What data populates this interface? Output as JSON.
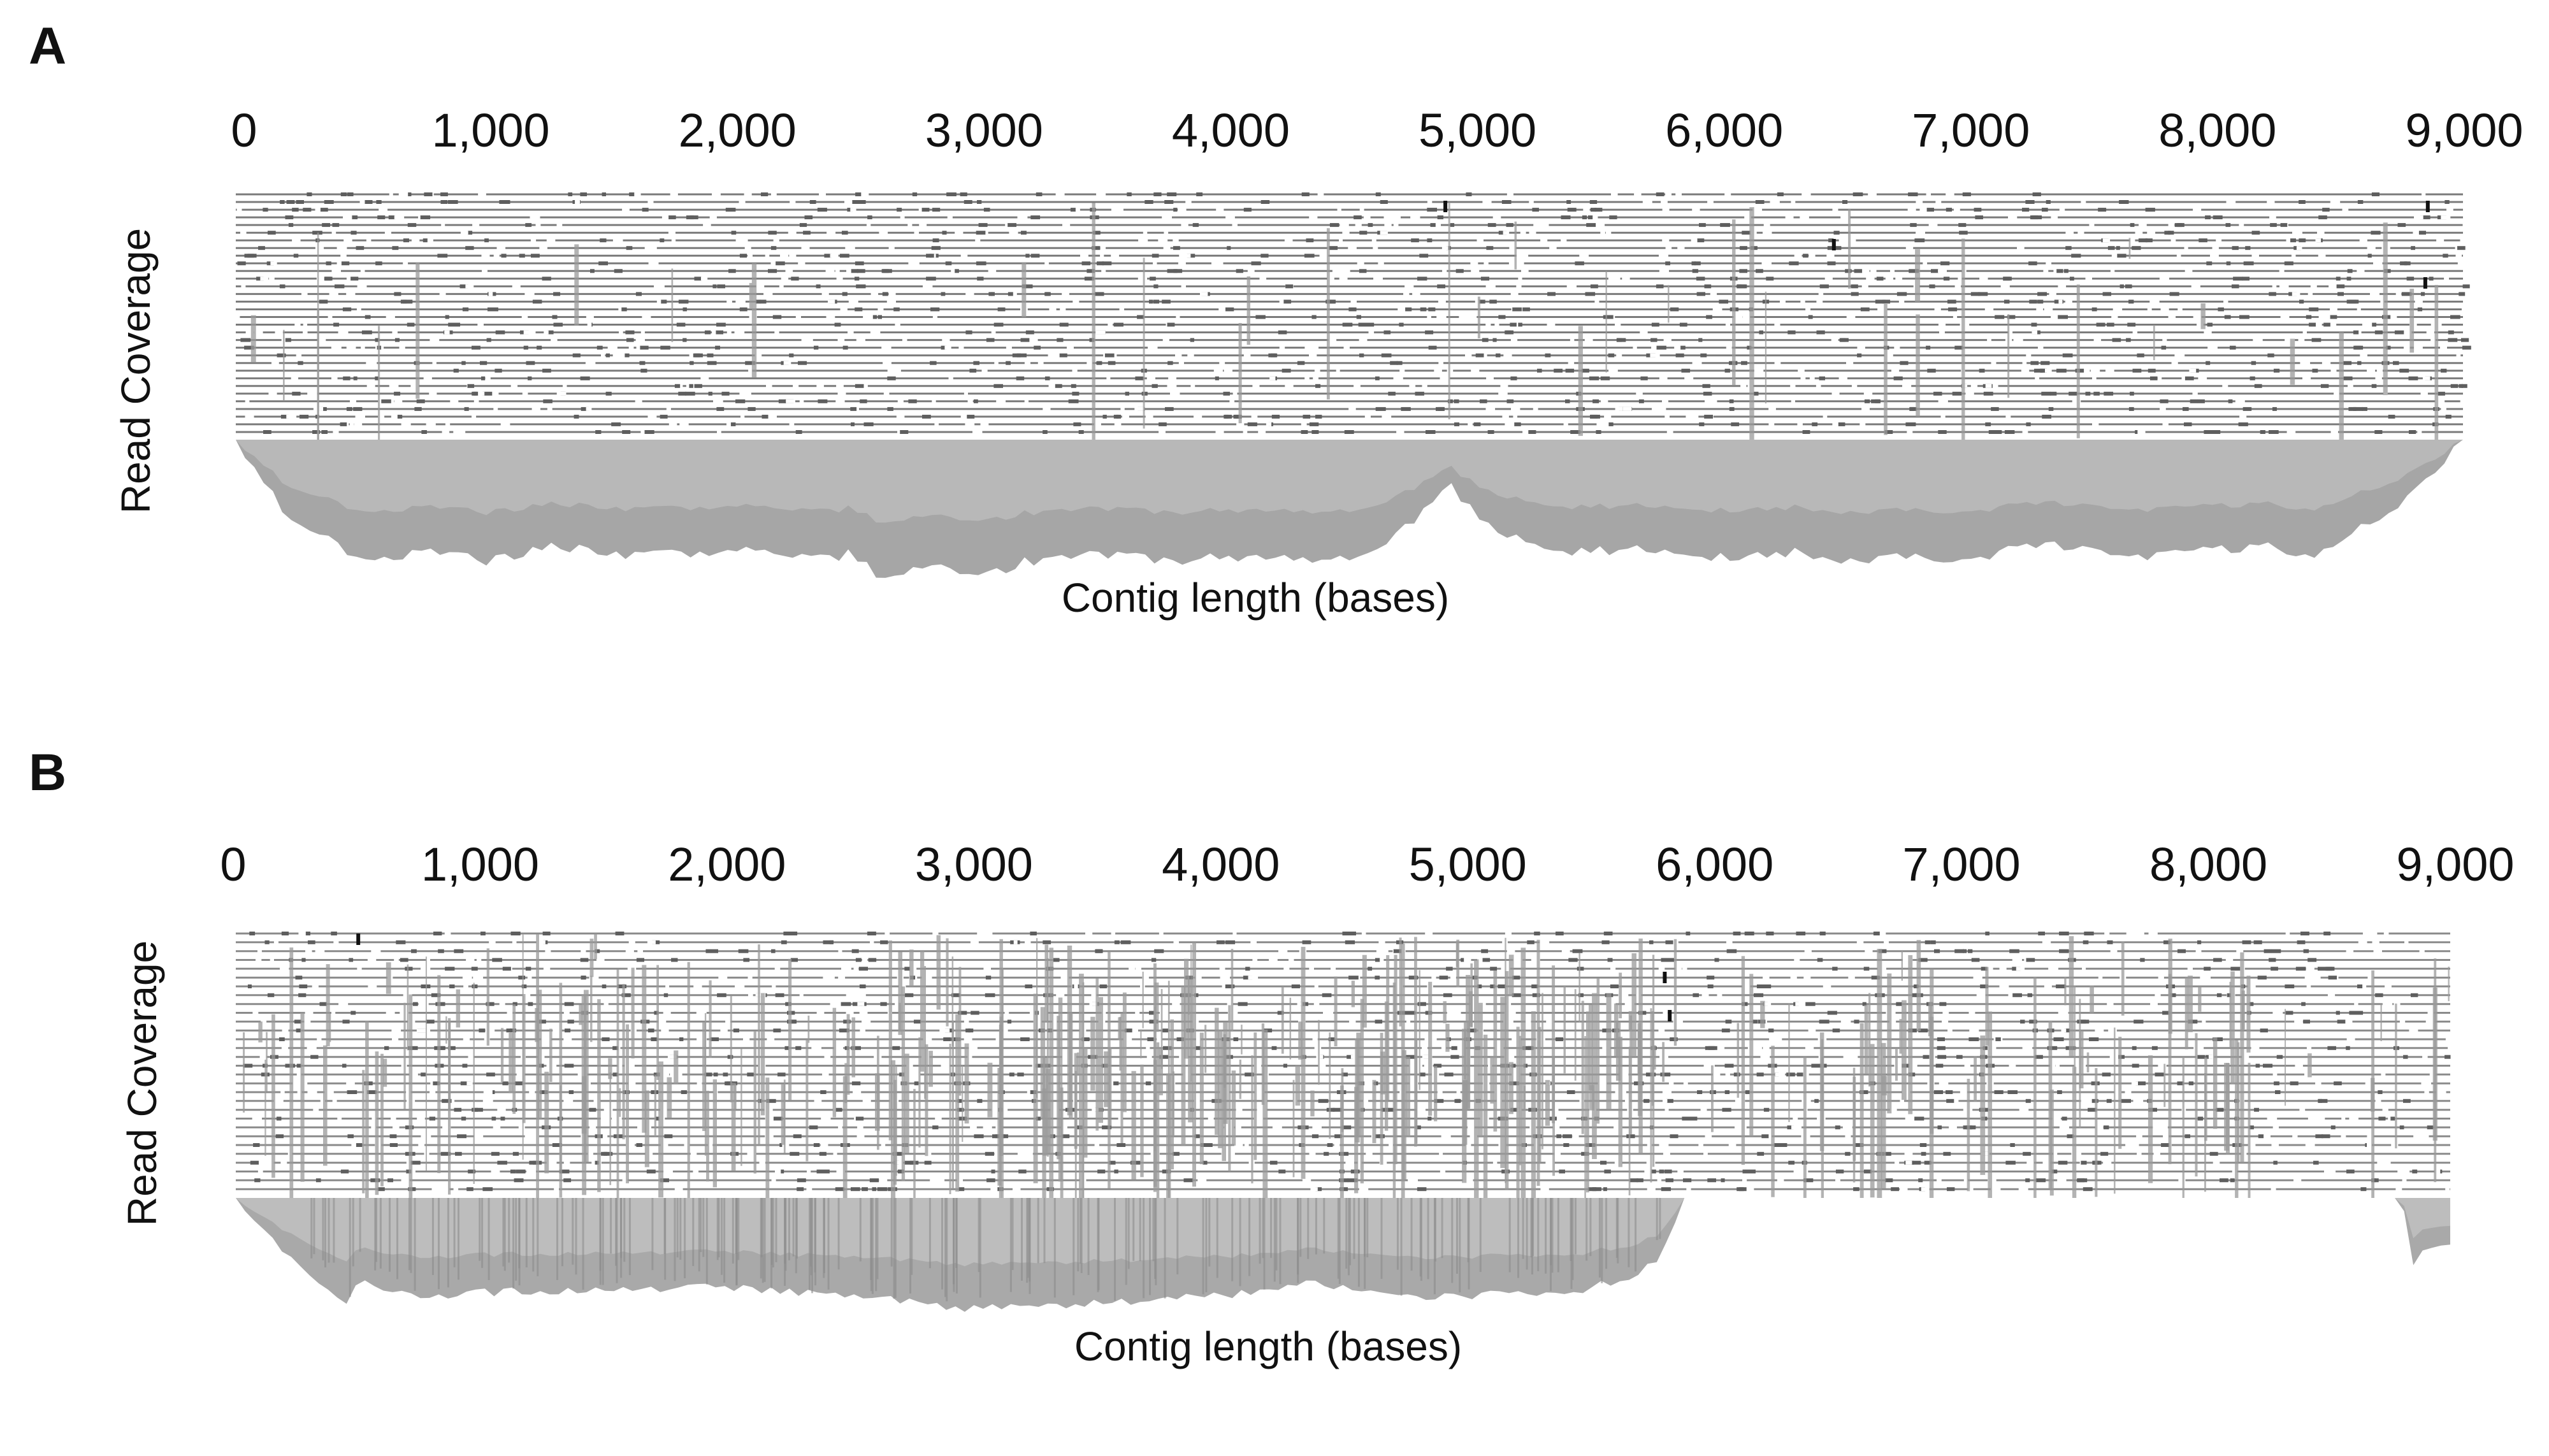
{
  "chart_data": [
    {
      "panel_label": "A",
      "type": "area",
      "description": "read pileup with coverage profile below",
      "xlabel": "Contig length (bases)",
      "ylabel": "Read Coverage",
      "x_ticks": [
        0,
        1000,
        2000,
        3000,
        4000,
        5000,
        6000,
        7000,
        8000,
        9000
      ],
      "x_tick_labels": [
        "0",
        "1,000",
        "2,000",
        "3,000",
        "4,000",
        "5,000",
        "6,000",
        "7,000",
        "8,000",
        "9,000"
      ],
      "xlim": [
        0,
        9000
      ],
      "read_rows": 32,
      "grid": false,
      "colors": {
        "reads": "#7a7a7a",
        "coverage_fill": "#a6a6a6",
        "coverage_inner": "#b8b8b8",
        "mismatch": "#111111"
      },
      "coverage_profile": {
        "x": [
          0,
          200,
          500,
          800,
          1000,
          1300,
          1600,
          2000,
          2400,
          2500,
          2600,
          2800,
          3000,
          3200,
          3500,
          3800,
          4000,
          4300,
          4600,
          4800,
          4900,
          5100,
          5400,
          5700,
          6000,
          6300,
          6500,
          6800,
          7000,
          7300,
          7600,
          7900,
          8200,
          8400,
          8500,
          8700,
          8800,
          9000
        ],
        "y": [
          0,
          0.55,
          0.92,
          0.86,
          0.93,
          0.81,
          0.9,
          0.84,
          0.9,
          0.87,
          1.07,
          0.95,
          1.06,
          0.93,
          0.88,
          0.93,
          0.89,
          0.92,
          0.87,
          0.55,
          0.35,
          0.72,
          0.86,
          0.84,
          0.9,
          0.86,
          0.94,
          0.88,
          0.93,
          0.78,
          0.9,
          0.86,
          0.82,
          0.88,
          0.75,
          0.6,
          0.4,
          0
        ]
      },
      "mismatches_x": [
        4880,
        6450,
        8840,
        8850
      ]
    },
    {
      "panel_label": "B",
      "type": "area",
      "description": "read pileup with coverage profile below",
      "xlabel": "Contig length (bases)",
      "ylabel": "Read Coverage",
      "x_ticks": [
        0,
        1000,
        2000,
        3000,
        4000,
        5000,
        6000,
        7000,
        8000,
        9000
      ],
      "x_tick_labels": [
        "0",
        "1,000",
        "2,000",
        "3,000",
        "4,000",
        "5,000",
        "6,000",
        "7,000",
        "8,000",
        "9,000"
      ],
      "xlim": [
        0,
        9000
      ],
      "read_rows": 30,
      "grid": false,
      "colors": {
        "reads": "#8a8a8a",
        "coverage_fill": "#a9a9a9",
        "coverage_inner": "#bdbdbd",
        "mismatch": "#111111"
      },
      "coverage_profile": {
        "x": [
          0,
          250,
          450,
          500,
          800,
          1000,
          1500,
          2000,
          2500,
          3000,
          3500,
          4000,
          4400,
          4700,
          5000,
          5400,
          5700,
          5800,
          5850,
          5860,
          8800,
          8850,
          8900,
          9000,
          9010
        ],
        "y": [
          0,
          0.6,
          0.95,
          0.75,
          0.9,
          0.85,
          0.82,
          0.8,
          0.88,
          1.0,
          0.95,
          0.88,
          0.76,
          0.9,
          0.87,
          0.86,
          0.7,
          0.5,
          0.25,
          0,
          0,
          0.6,
          0.45,
          0.4,
          0
        ]
      },
      "mismatches_x": [
        490,
        5800,
        5820
      ]
    }
  ]
}
